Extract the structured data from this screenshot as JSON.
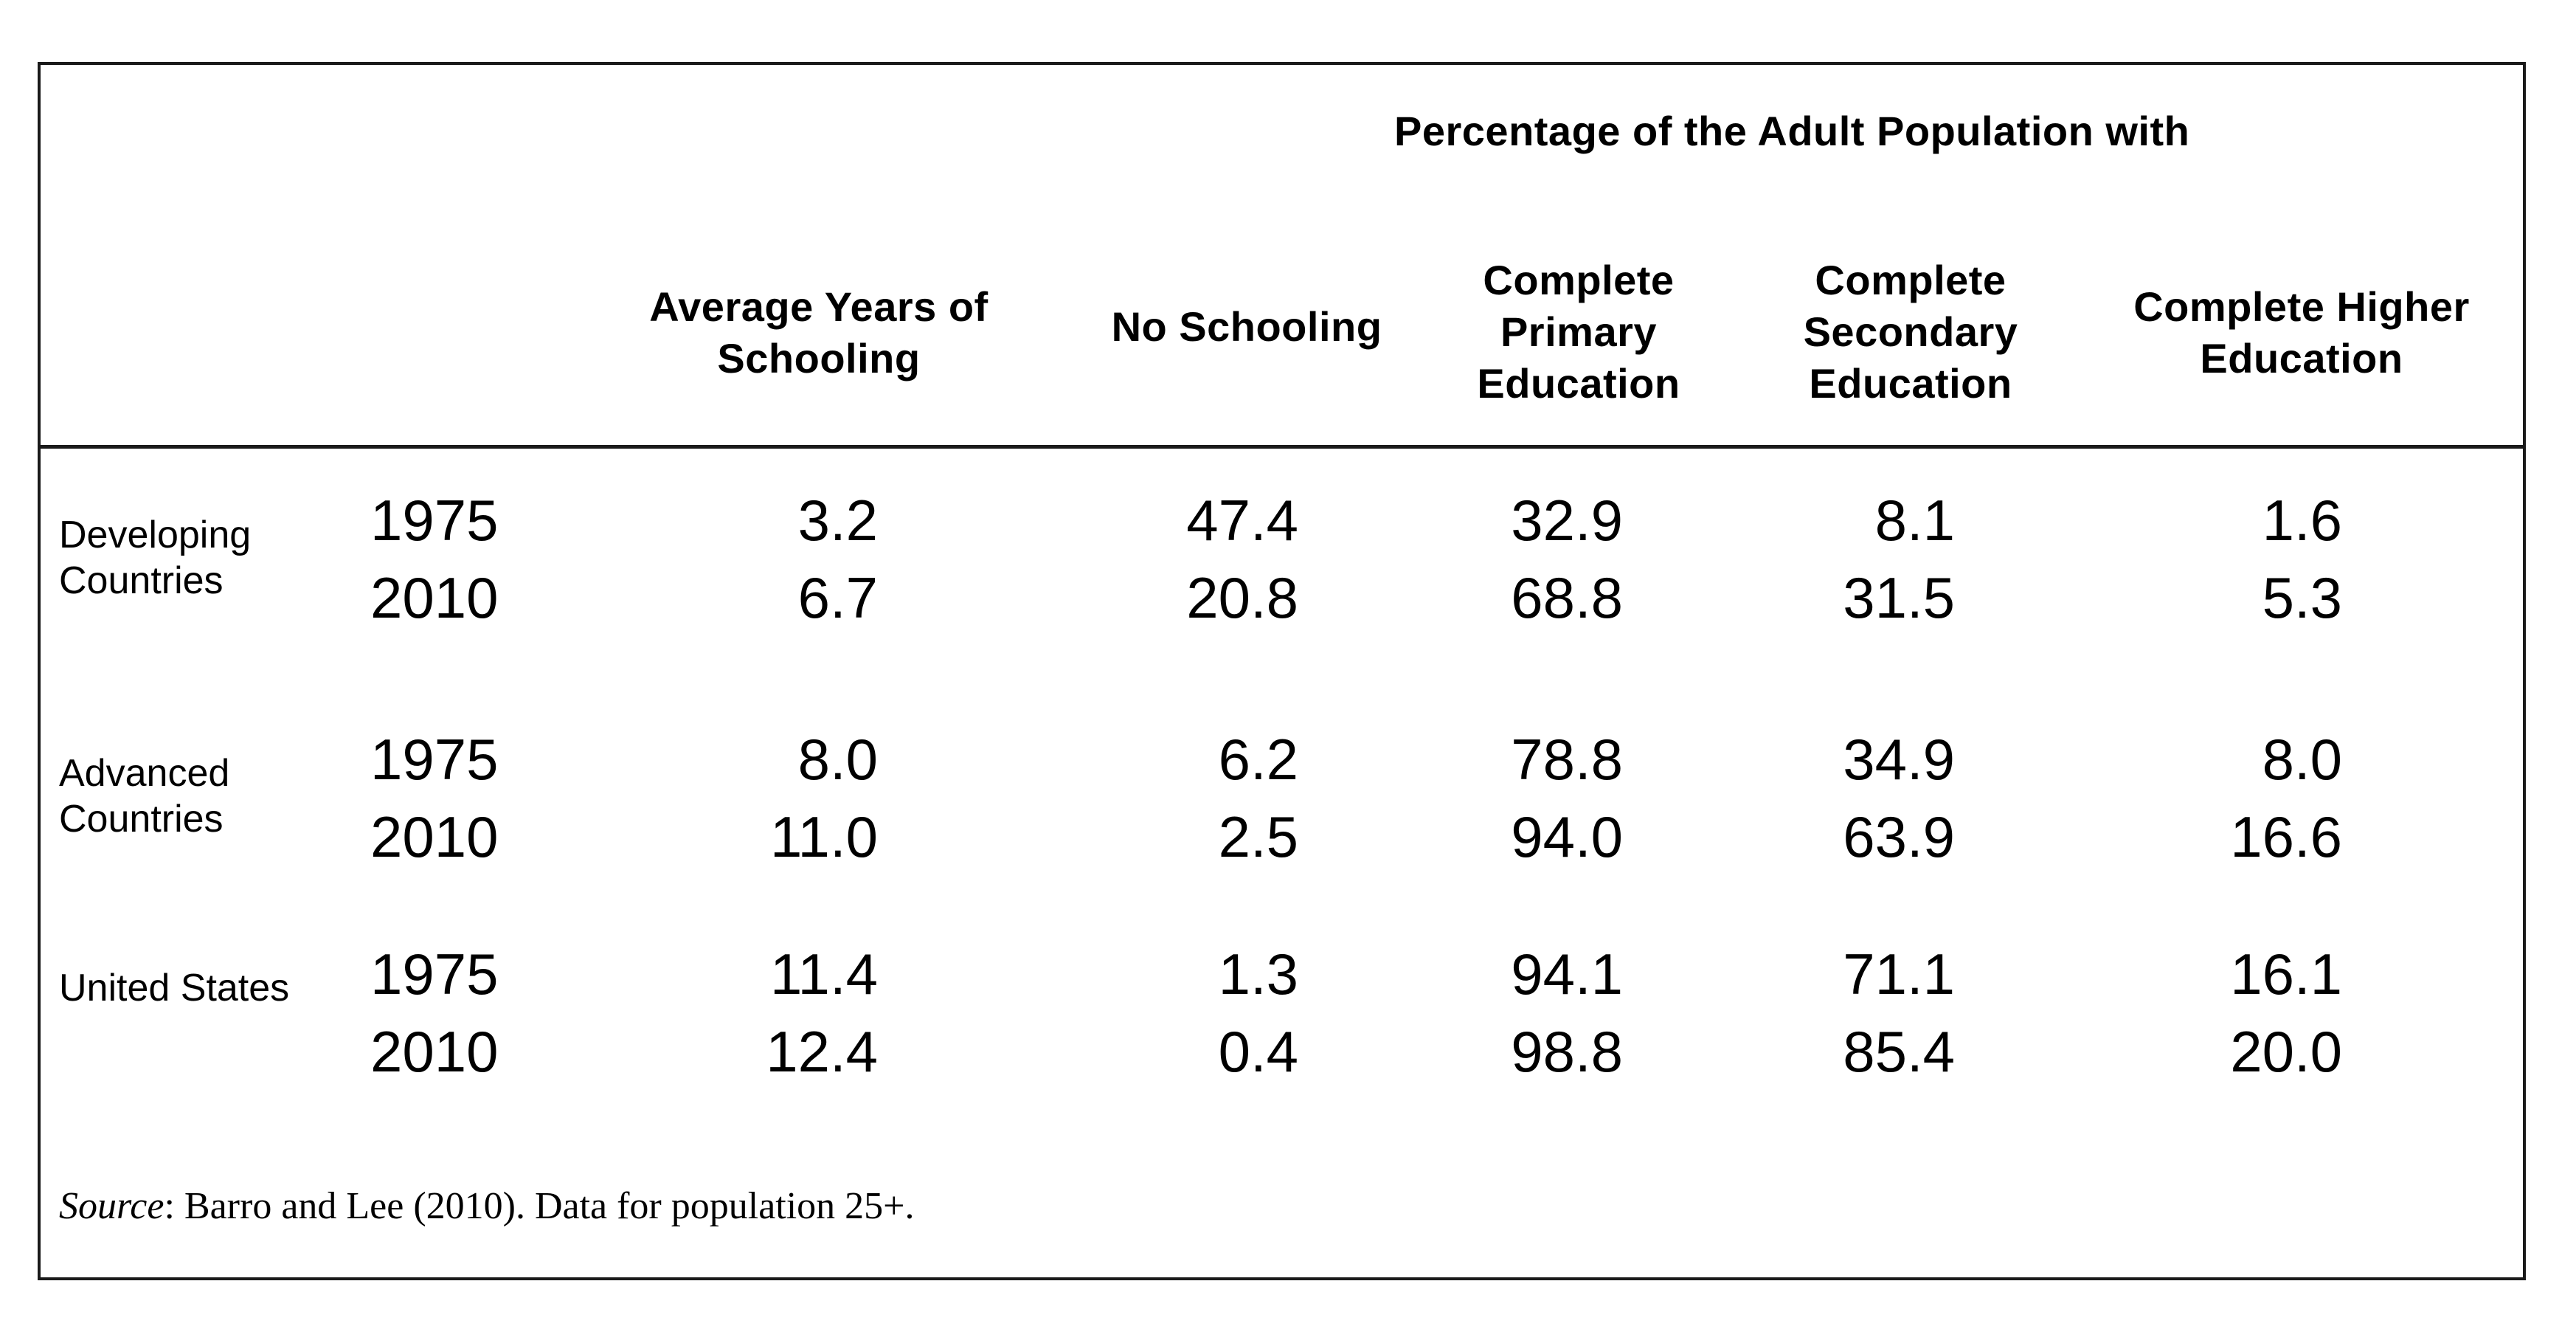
{
  "table": {
    "super_header": "Percentage of the Adult Population with",
    "headers": {
      "avg_years": [
        "Average Years of",
        "Schooling"
      ],
      "no_schooling": [
        "No Schooling"
      ],
      "primary": [
        "Complete",
        "Primary",
        "Education"
      ],
      "secondary": [
        "Complete",
        "Secondary",
        "Education"
      ],
      "higher": [
        "Complete Higher",
        "Education"
      ]
    },
    "groups": [
      {
        "label_lines": [
          "Developing",
          "Countries"
        ],
        "rows": [
          {
            "year": "1975",
            "avg_years": "3.2",
            "no_schooling": "47.4",
            "primary": "32.9",
            "secondary": "8.1",
            "higher": "1.6"
          },
          {
            "year": "2010",
            "avg_years": "6.7",
            "no_schooling": "20.8",
            "primary": "68.8",
            "secondary": "31.5",
            "higher": "5.3"
          }
        ]
      },
      {
        "label_lines": [
          "Advanced",
          "Countries"
        ],
        "rows": [
          {
            "year": "1975",
            "avg_years": "8.0",
            "no_schooling": "6.2",
            "primary": "78.8",
            "secondary": "34.9",
            "higher": "8.0"
          },
          {
            "year": "2010",
            "avg_years": "11.0",
            "no_schooling": "2.5",
            "primary": "94.0",
            "secondary": "63.9",
            "higher": "16.6"
          }
        ]
      },
      {
        "label_lines": [
          "United States"
        ],
        "rows": [
          {
            "year": "1975",
            "avg_years": "11.4",
            "no_schooling": "1.3",
            "primary": "94.1",
            "secondary": "71.1",
            "higher": "16.1"
          },
          {
            "year": "2010",
            "avg_years": "12.4",
            "no_schooling": "0.4",
            "primary": "98.8",
            "secondary": "85.4",
            "higher": "20.0"
          }
        ]
      }
    ],
    "source": {
      "label": "Source",
      "text": ": Barro and Lee (2010).  Data for population 25+."
    }
  }
}
